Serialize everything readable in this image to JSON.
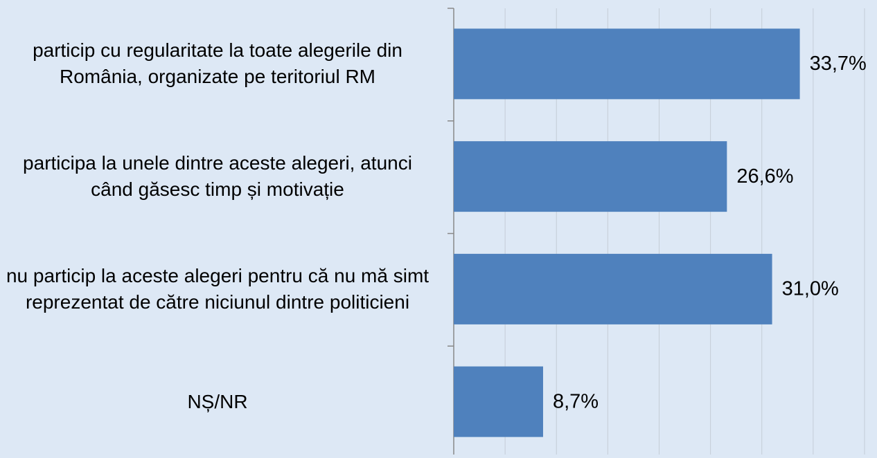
{
  "chart_data": {
    "type": "hbar",
    "categories": [
      "particip cu regularitate la toate alegerile din România, organizate pe teritoriul RM",
      "participa la unele dintre aceste alegeri, atunci când găsesc timp și motivație",
      "nu particip la aceste alegeri pentru că nu mă simt reprezentat de către niciunul dintre politicieni",
      "NȘ/NR"
    ],
    "values": [
      33.7,
      26.6,
      31.0,
      8.7
    ],
    "value_labels": [
      "33,7%",
      "26,6%",
      "31,0%",
      "8,7%"
    ],
    "color": "#4f81bd",
    "xlim": [
      0,
      40
    ],
    "xticks": [
      0,
      5,
      10,
      15,
      20,
      25,
      30,
      35,
      40
    ],
    "grid": true
  }
}
